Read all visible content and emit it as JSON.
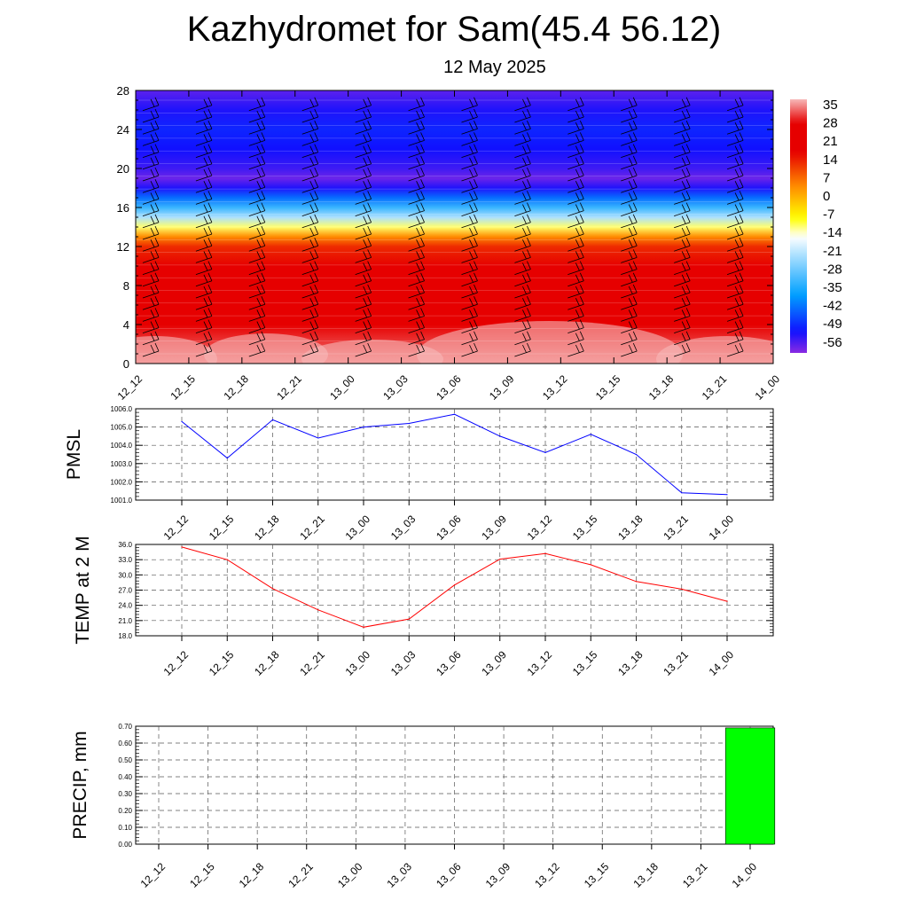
{
  "title": "Kazhydromet for Sam(45.4 56.12)",
  "subtitle": "12 May 2025",
  "time_labels": [
    "12_12",
    "12_15",
    "12_18",
    "12_21",
    "13_00",
    "13_03",
    "13_06",
    "13_09",
    "13_12",
    "13_15",
    "13_18",
    "13_21",
    "14_00"
  ],
  "chart_data": [
    {
      "type": "heatmap",
      "title": "",
      "ylabel": "",
      "ylim": [
        0,
        28
      ],
      "yticks": [
        "0",
        "4",
        "8",
        "12",
        "16",
        "20",
        "24",
        "28"
      ],
      "colorbar": {
        "labels": [
          "35",
          "28",
          "21",
          "14",
          "7",
          "0",
          "-7",
          "-14",
          "-21",
          "-28",
          "-35",
          "-42",
          "-49",
          "-56"
        ],
        "range": [
          -60,
          36
        ]
      },
      "profile": {
        "levels": [
          0,
          2,
          4,
          6,
          8,
          10,
          12,
          13,
          14,
          15,
          16,
          17,
          18,
          19,
          20,
          22,
          24,
          26,
          28
        ],
        "values": [
          33,
          30,
          27,
          24,
          21,
          17,
          12,
          3,
          -12,
          -23,
          -33,
          -43,
          -53,
          -58,
          -55,
          -52,
          -50,
          -53,
          -57
        ]
      },
      "colors": {
        "hot": "#f7b8b8",
        "red": "#e60000",
        "orange": "#ff8c00",
        "yellow": "#ffff00",
        "white": "#ffffff",
        "lightblue": "#a0dcff",
        "cyan": "#00a0ff",
        "blue": "#1010ff",
        "purple": "#8a2be2"
      },
      "barbs": "wind-barbs"
    },
    {
      "type": "line",
      "ylabel": "PMSL",
      "ylim": [
        1001.0,
        1006.0
      ],
      "yticks": [
        "1001.0",
        "1002.0",
        "1003.0",
        "1004.0",
        "1005.0",
        "1006.0"
      ],
      "values": [
        1005.3,
        1003.3,
        1005.4,
        1004.4,
        1005.0,
        1005.2,
        1005.7,
        1004.5,
        1003.6,
        1004.6,
        1003.5,
        1001.4,
        1001.3
      ],
      "color": "#0000ff"
    },
    {
      "type": "line",
      "ylabel": "TEMP at 2 M",
      "ylim": [
        18.0,
        36.0
      ],
      "yticks": [
        "18.0",
        "21.0",
        "24.0",
        "27.0",
        "30.0",
        "33.0",
        "36.0"
      ],
      "values": [
        35.5,
        33.0,
        27.3,
        23.1,
        19.7,
        21.3,
        28.0,
        33.1,
        34.2,
        32.0,
        28.7,
        27.2,
        24.8
      ],
      "color": "#ff0000"
    },
    {
      "type": "bar",
      "ylabel": "PRECIP, mm",
      "ylim": [
        0,
        0.7
      ],
      "yticks": [
        "0.00",
        "0.10",
        "0.20",
        "0.30",
        "0.40",
        "0.50",
        "0.60",
        "0.70"
      ],
      "values": [
        0,
        0,
        0,
        0,
        0,
        0,
        0,
        0,
        0,
        0,
        0,
        0,
        0.69
      ],
      "color": "#00ff00"
    }
  ]
}
